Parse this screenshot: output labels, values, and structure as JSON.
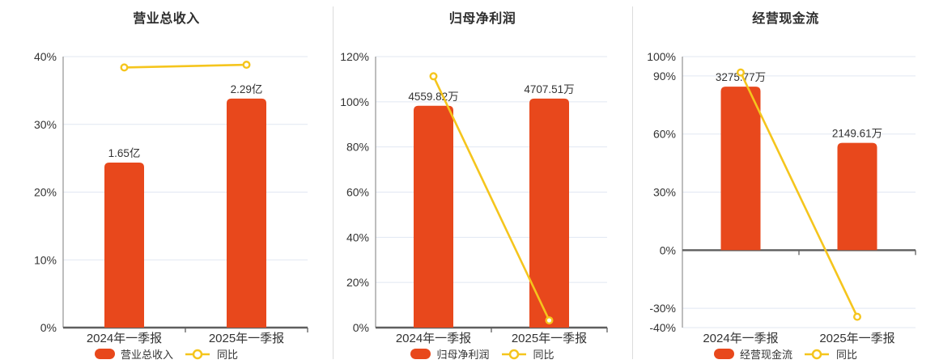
{
  "colors": {
    "bar": "#e8481c",
    "line": "#f5c51d",
    "grid": "#e1e7f2",
    "axis": "#9a9a9a",
    "axis_dark": "#5f5f5f",
    "text": "#333333",
    "separator": "#dcdcdc"
  },
  "chart_data": [
    {
      "type": "bar",
      "title": "营业总收入",
      "categories": [
        "2024年一季报",
        "2025年一季报"
      ],
      "series": [
        {
          "name": "营业总收入",
          "type": "bar",
          "unit": "亿",
          "values": [
            1.65,
            2.29
          ],
          "labels": [
            "1.65亿",
            "2.29亿"
          ]
        },
        {
          "name": "同比",
          "type": "line",
          "unit": "%",
          "values": [
            38.4,
            38.8
          ]
        }
      ],
      "xlabel": "",
      "ylabel": "",
      "yticks": [
        0,
        10,
        20,
        30,
        40
      ],
      "ylim": [
        0,
        40
      ],
      "grid": true,
      "legend_position": "bottom"
    },
    {
      "type": "bar",
      "title": "归母净利润",
      "categories": [
        "2024年一季报",
        "2025年一季报"
      ],
      "series": [
        {
          "name": "归母净利润",
          "type": "bar",
          "unit": "万",
          "values": [
            4559.82,
            4707.51
          ],
          "labels": [
            "4559.82万",
            "4707.51万"
          ]
        },
        {
          "name": "同比",
          "type": "line",
          "unit": "%",
          "values": [
            111.3,
            3.2
          ]
        }
      ],
      "xlabel": "",
      "ylabel": "",
      "yticks": [
        0,
        20,
        40,
        60,
        80,
        100,
        120
      ],
      "ylim": [
        0,
        120
      ],
      "grid": true,
      "legend_position": "bottom"
    },
    {
      "type": "bar",
      "title": "经营现金流",
      "categories": [
        "2024年一季报",
        "2025年一季报"
      ],
      "series": [
        {
          "name": "经营现金流",
          "type": "bar",
          "unit": "万",
          "values": [
            3275.77,
            2149.61
          ],
          "labels": [
            "3275.77万",
            "2149.61万"
          ]
        },
        {
          "name": "同比",
          "type": "line",
          "unit": "%",
          "values": [
            91.8,
            -34.4
          ]
        }
      ],
      "xlabel": "",
      "ylabel": "",
      "yticks": [
        -40,
        -30,
        0,
        30,
        60,
        90,
        100
      ],
      "ylim": [
        -40,
        100
      ],
      "grid": true,
      "legend_position": "bottom"
    }
  ]
}
